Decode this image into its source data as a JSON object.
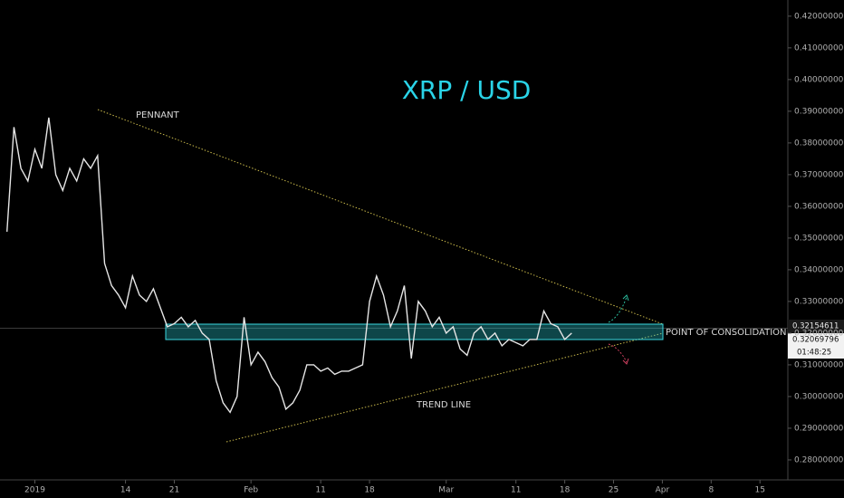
{
  "chart_data": {
    "type": "line",
    "title": "XRP / USD",
    "annotations": [
      "PENNANT",
      "TREND LINE",
      "POINT OF CONSOLIDATION"
    ],
    "price_labels": [
      0.32154611,
      0.32069796,
      "01:48:25"
    ],
    "color": "#e6e6e6",
    "x": [
      -4,
      -3,
      -2,
      -1,
      0,
      1,
      2,
      3,
      4,
      5,
      6,
      7,
      8,
      9,
      10,
      11,
      12,
      13,
      14,
      15,
      16,
      17,
      18,
      19,
      20,
      21,
      22,
      23,
      24,
      25,
      26,
      27,
      28,
      29,
      30,
      31,
      32,
      33,
      34,
      35,
      36,
      37,
      38,
      39,
      40,
      41,
      42,
      43,
      44,
      45,
      46,
      47,
      48,
      49,
      50,
      51,
      52,
      53,
      54,
      55,
      56,
      57,
      58,
      59,
      60,
      61,
      62,
      63,
      64,
      65,
      66,
      67,
      68,
      69,
      70,
      71,
      72,
      73,
      74,
      75,
      76,
      77
    ],
    "values": [
      0.352,
      0.385,
      0.372,
      0.368,
      0.378,
      0.372,
      0.388,
      0.37,
      0.365,
      0.372,
      0.368,
      0.375,
      0.372,
      0.376,
      0.342,
      0.335,
      0.332,
      0.328,
      0.338,
      0.332,
      0.33,
      0.334,
      0.328,
      0.322,
      0.323,
      0.325,
      0.322,
      0.324,
      0.32,
      0.318,
      0.305,
      0.298,
      0.295,
      0.3,
      0.325,
      0.31,
      0.314,
      0.311,
      0.306,
      0.303,
      0.296,
      0.298,
      0.302,
      0.31,
      0.31,
      0.308,
      0.309,
      0.307,
      0.308,
      0.308,
      0.309,
      0.31,
      0.33,
      0.338,
      0.332,
      0.322,
      0.327,
      0.335,
      0.312,
      0.33,
      0.327,
      0.322,
      0.325,
      0.32,
      0.322,
      0.315,
      0.313,
      0.32,
      0.322,
      0.318,
      0.32,
      0.316,
      0.318,
      0.317,
      0.316,
      0.318,
      0.318,
      0.327,
      0.323,
      0.322,
      0.318,
      0.32
    ],
    "xlim": [
      -5,
      108
    ],
    "xticks": [
      {
        "value": 0,
        "label": "2019"
      },
      {
        "value": 13,
        "label": "14"
      },
      {
        "value": 20,
        "label": "21"
      },
      {
        "value": 31,
        "label": "Feb"
      },
      {
        "value": 41,
        "label": "11"
      },
      {
        "value": 48,
        "label": "18"
      },
      {
        "value": 59,
        "label": "Mar"
      },
      {
        "value": 69,
        "label": "11"
      },
      {
        "value": 76,
        "label": "18"
      },
      {
        "value": 83,
        "label": "25"
      },
      {
        "value": 90,
        "label": "Apr"
      },
      {
        "value": 97,
        "label": "8"
      },
      {
        "value": 104,
        "label": "15"
      }
    ],
    "ylim": [
      0.2737,
      0.4251
    ],
    "yticks": [
      {
        "value": 0.28,
        "label": "0.28000000"
      },
      {
        "value": 0.29,
        "label": "0.29000000"
      },
      {
        "value": 0.3,
        "label": "0.30000000"
      },
      {
        "value": 0.31,
        "label": "0.31000000"
      },
      {
        "value": 0.32,
        "label": "0.32000000"
      },
      {
        "value": 0.33,
        "label": "0.33000000"
      },
      {
        "value": 0.34,
        "label": "0.34000000"
      },
      {
        "value": 0.35,
        "label": "0.35000000"
      },
      {
        "value": 0.36,
        "label": "0.36000000"
      },
      {
        "value": 0.37,
        "label": "0.37000000"
      },
      {
        "value": 0.38,
        "label": "0.38000000"
      },
      {
        "value": 0.39,
        "label": "0.39000000"
      },
      {
        "value": 0.4,
        "label": "0.40000000"
      },
      {
        "value": 0.41,
        "label": "0.41000000"
      },
      {
        "value": 0.42,
        "label": "0.42000000"
      }
    ],
    "grid": false
  }
}
